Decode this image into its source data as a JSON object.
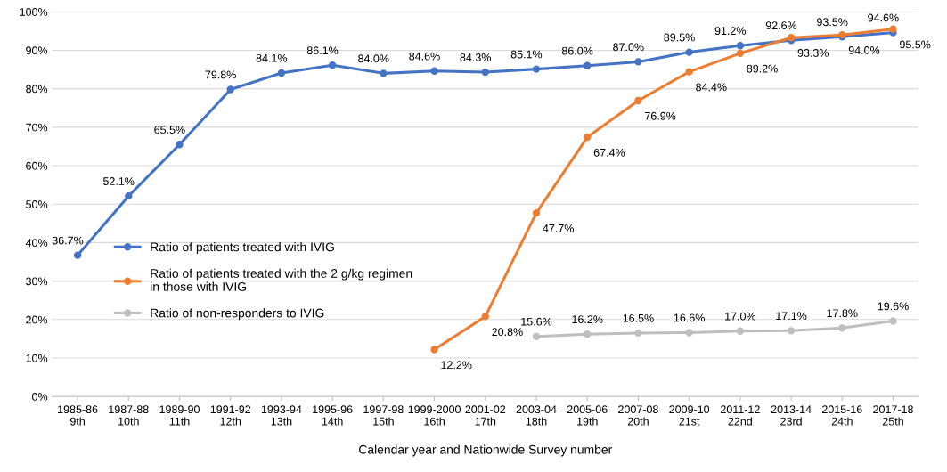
{
  "chart_data": {
    "type": "line",
    "xlabel": "Calendar year and Nationwide Survey number",
    "categories": [
      "1985-86\n9th",
      "1987-88\n10th",
      "1989-90\n11th",
      "1991-92\n12th",
      "1993-94\n13th",
      "1995-96\n14th",
      "1997-98\n15th",
      "1999-2000\n16th",
      "2001-02\n17th",
      "2003-04\n18th",
      "2005-06\n19th",
      "2007-08\n20th",
      "2009-10\n21st",
      "2011-12\n22nd",
      "2013-14\n23rd",
      "2015-16\n24th",
      "2017-18\n25th"
    ],
    "series": [
      {
        "name": "Ratio of patients treated with IVIG",
        "color": "#4472c4",
        "values": [
          36.7,
          52.1,
          65.5,
          79.8,
          84.1,
          86.1,
          84.0,
          84.6,
          84.3,
          85.1,
          86.0,
          87.0,
          89.5,
          91.2,
          92.6,
          93.5,
          94.6
        ],
        "value_labels": [
          "36.7%",
          "52.1%",
          "65.5%",
          "79.8%",
          "84.1%",
          "86.1%",
          "84.0%",
          "84.6%",
          "84.3%",
          "85.1%",
          "86.0%",
          "87.0%",
          "89.5%",
          "91.2%",
          "92.6%",
          "93.5%",
          "94.6%"
        ]
      },
      {
        "name": "Ratio of patients treated with the 2 g/kg regimen\nin those with IVIG",
        "color": "#ed7d31",
        "values": [
          null,
          null,
          null,
          null,
          null,
          null,
          null,
          12.2,
          20.8,
          47.7,
          67.4,
          76.9,
          84.4,
          89.2,
          93.3,
          94.0,
          95.5
        ],
        "value_labels": [
          null,
          null,
          null,
          null,
          null,
          null,
          null,
          "12.2%",
          "20.8%",
          "47.7%",
          "67.4%",
          "76.9%",
          "84.4%",
          "89.2%",
          "93.3%",
          "94.0%",
          "95.5%"
        ]
      },
      {
        "name": "Ratio of non-responders to IVIG",
        "color": "#bfbfbf",
        "values": [
          null,
          null,
          null,
          null,
          null,
          null,
          null,
          null,
          null,
          15.6,
          16.2,
          16.5,
          16.6,
          17.0,
          17.1,
          17.8,
          19.6
        ],
        "value_labels": [
          null,
          null,
          null,
          null,
          null,
          null,
          null,
          null,
          null,
          "15.6%",
          "16.2%",
          "16.5%",
          "16.6%",
          "17.0%",
          "17.1%",
          "17.8%",
          "19.6%"
        ]
      }
    ],
    "ylim": [
      0,
      100
    ],
    "yticks": [
      {
        "value": 0,
        "label": "0%"
      },
      {
        "value": 10,
        "label": "10%"
      },
      {
        "value": 20,
        "label": "20%"
      },
      {
        "value": 30,
        "label": "30%"
      },
      {
        "value": 40,
        "label": "40%"
      },
      {
        "value": 50,
        "label": "50%"
      },
      {
        "value": 60,
        "label": "60%"
      },
      {
        "value": 70,
        "label": "70%"
      },
      {
        "value": 80,
        "label": "80%"
      },
      {
        "value": 90,
        "label": "90%"
      },
      {
        "value": 100,
        "label": "100%"
      }
    ],
    "grid": "y",
    "legend": "left",
    "marker": "circle",
    "line_style": "solid"
  }
}
